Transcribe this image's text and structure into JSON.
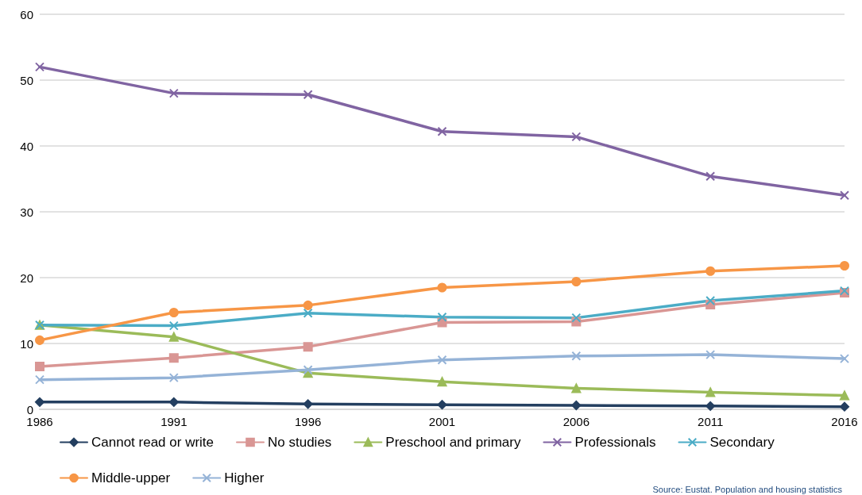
{
  "chart_data": {
    "type": "line",
    "categories": [
      "1986",
      "1991",
      "1996",
      "2001",
      "2006",
      "2011",
      "2016"
    ],
    "series": [
      {
        "name": "Cannot read or write",
        "color": "#243f60",
        "marker": "diamond",
        "values": [
          1.1,
          1.1,
          0.8,
          0.7,
          0.6,
          0.5,
          0.4
        ]
      },
      {
        "name": "No studies",
        "color": "#d99694",
        "marker": "square",
        "values": [
          6.5,
          7.8,
          9.5,
          13.2,
          13.3,
          15.9,
          17.7
        ]
      },
      {
        "name": "Preschool and primary",
        "color": "#9bbb59",
        "marker": "triangle",
        "values": [
          12.8,
          11,
          5.5,
          4.2,
          3.2,
          2.6,
          2.1
        ]
      },
      {
        "name": "Professionals",
        "color": "#8064a2",
        "marker": "cross",
        "values": [
          52,
          48,
          47.8,
          42.2,
          41.4,
          35.4,
          32.5
        ]
      },
      {
        "name": "Secondary",
        "color": "#4bacc6",
        "marker": "cross",
        "values": [
          12.8,
          12.7,
          14.6,
          14,
          13.9,
          16.5,
          18
        ]
      },
      {
        "name": "Middle-upper",
        "color": "#f79646",
        "marker": "circle",
        "values": [
          10.5,
          14.7,
          15.8,
          18.5,
          19.4,
          21,
          21.8
        ]
      },
      {
        "name": "Higher",
        "color": "#95b3d7",
        "marker": "cross",
        "values": [
          4.5,
          4.8,
          6,
          7.5,
          8.1,
          8.3,
          7.7
        ]
      }
    ],
    "ylim": [
      0,
      60
    ],
    "yticks": [
      0,
      10,
      20,
      30,
      40,
      50,
      60
    ],
    "grid": "y",
    "legend": "bottom",
    "line_style": "solid",
    "annotations": [
      "Source: Eustat. Population and housing statistics"
    ]
  }
}
